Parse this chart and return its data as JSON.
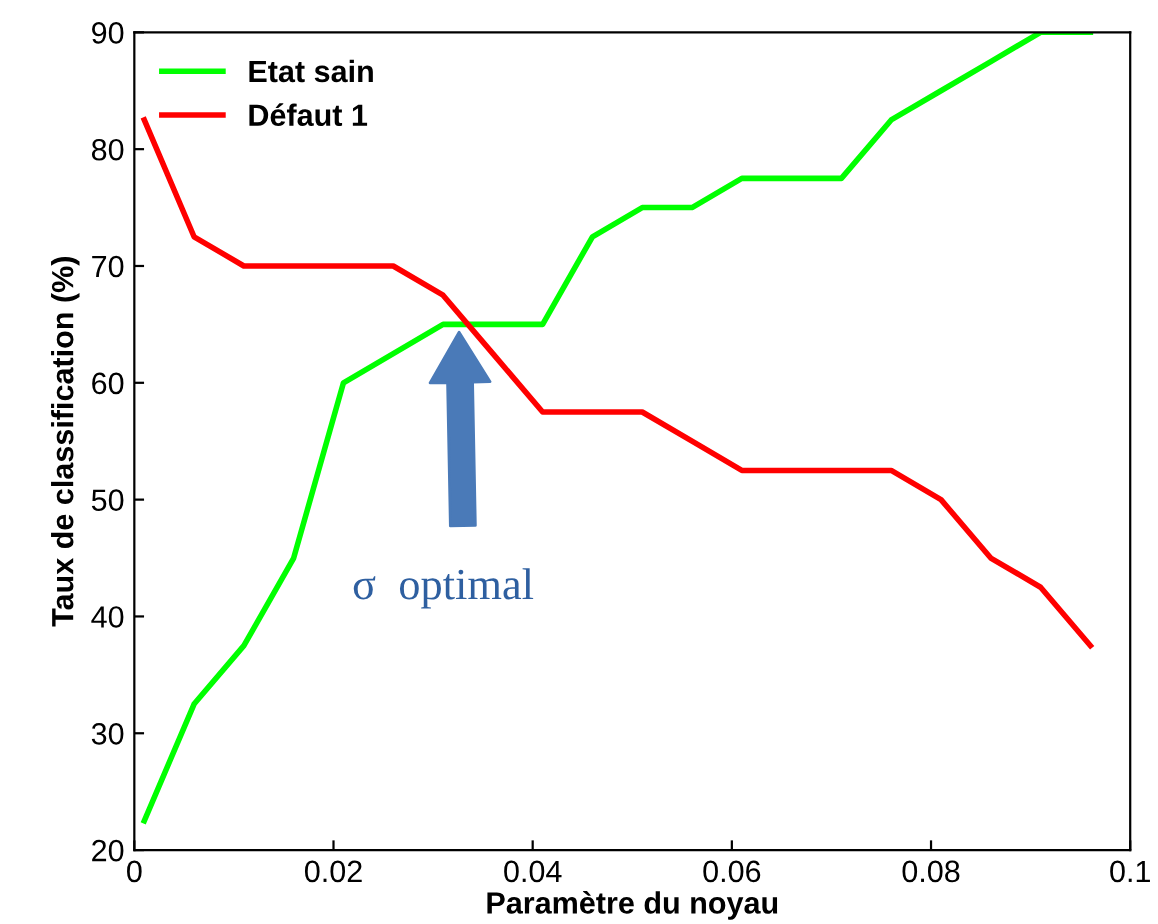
{
  "chart_data": {
    "type": "line",
    "xlabel": "Paramètre du noyau",
    "ylabel": "Taux de classification (%)",
    "x": [
      0.001,
      0.006,
      0.011,
      0.016,
      0.021,
      0.026,
      0.031,
      0.036,
      0.041,
      0.046,
      0.051,
      0.056,
      0.061,
      0.066,
      0.071,
      0.076,
      0.081,
      0.086,
      0.091,
      0.096
    ],
    "series": [
      {
        "name": "Etat sain",
        "color": "#00ff00",
        "values": [
          22.5,
          32.5,
          37.5,
          45,
          60,
          62.5,
          65,
          65,
          65,
          72.5,
          75,
          75,
          77.5,
          77.5,
          77.5,
          82.5,
          85,
          87.5,
          90,
          90
        ]
      },
      {
        "name": "Défaut 1",
        "color": "#ff0000",
        "values": [
          82.5,
          72.5,
          70,
          70,
          70,
          70,
          67.5,
          62.5,
          57.5,
          57.5,
          57.5,
          55,
          52.5,
          52.5,
          52.5,
          52.5,
          50,
          45,
          42.5,
          37.5
        ]
      }
    ],
    "xlim": [
      0,
      0.1
    ],
    "xticks": [
      0,
      0.02,
      0.04,
      0.06,
      0.08,
      0.1
    ],
    "ylim": [
      20,
      90
    ],
    "yticks": [
      20,
      30,
      40,
      50,
      60,
      70,
      80,
      90
    ],
    "annotations": [
      "σ  optimal"
    ],
    "legend": "top left",
    "grid": false,
    "marker": "none",
    "line_style": "solid"
  }
}
